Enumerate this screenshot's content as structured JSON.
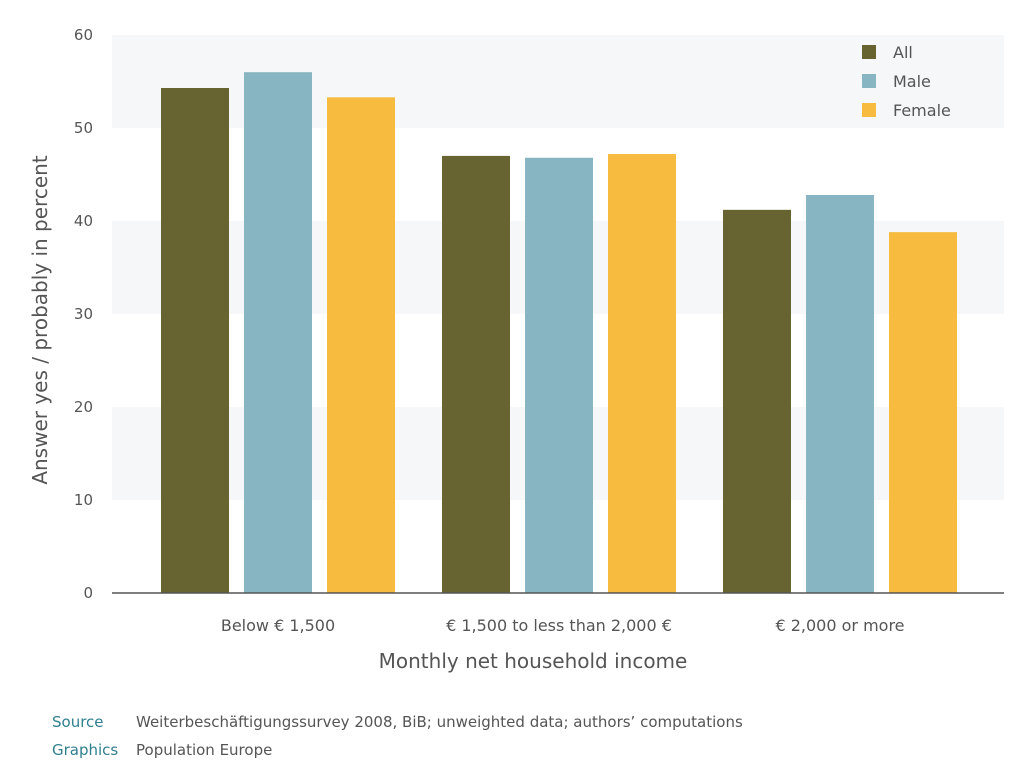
{
  "chart_data": {
    "type": "bar",
    "categories": [
      "Below € 1,500",
      "€ 1,500 to less than 2,000 €",
      "€ 2,000 or more"
    ],
    "series": [
      {
        "name": "All",
        "values": [
          54.3,
          47.0,
          41.2
        ],
        "color": "#676432"
      },
      {
        "name": "Male",
        "values": [
          56.0,
          46.8,
          42.8
        ],
        "color": "#87b5c1"
      },
      {
        "name": "Female",
        "values": [
          53.3,
          47.2,
          38.8
        ],
        "color": "#f7bb40"
      }
    ],
    "xlabel": "Monthly net household income",
    "ylabel": "Answer yes / probably in percent",
    "ylim": [
      0,
      60
    ],
    "yticks": [
      "0",
      "10",
      "20",
      "30",
      "40",
      "50",
      "60"
    ],
    "legend_position": "top-right",
    "grid": "alternating horizontal bands"
  },
  "footer": {
    "source_key": "Source",
    "source_value": "Weiterbeschäftigungssurvey 2008, BiB; unweighted data; authors’ computations",
    "graphics_key": "Graphics",
    "graphics_value": "Population Europe"
  }
}
